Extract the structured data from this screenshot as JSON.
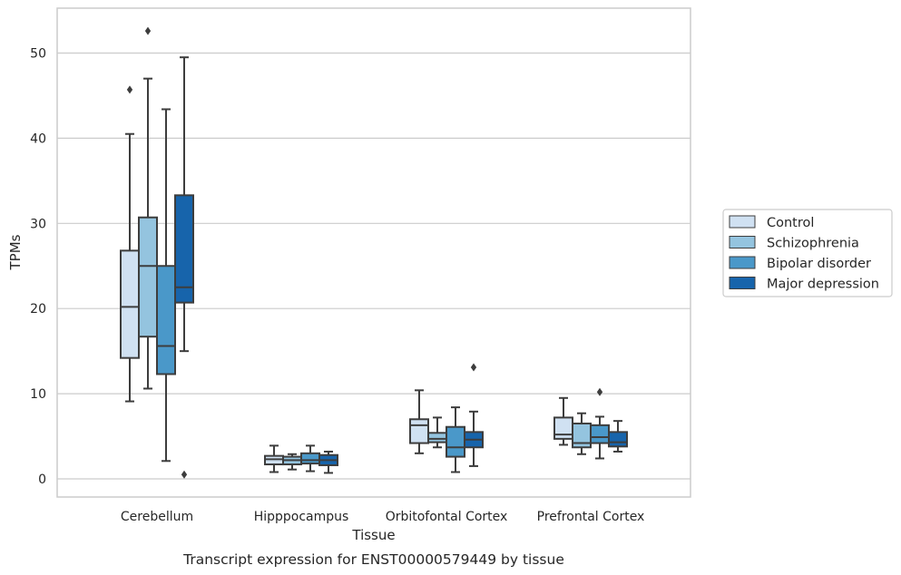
{
  "chart_data": {
    "type": "box",
    "caption": "Transcript expression for ENST00000579449 by tissue",
    "xlabel": "Tissue",
    "ylabel": "TPMs",
    "ylim": [
      -2,
      55
    ],
    "yticks": [
      0,
      10,
      20,
      30,
      40,
      50
    ],
    "grid": "horizontal",
    "legend_position": "right",
    "categories": [
      "Cerebellum",
      "Hipppocampus",
      "Orbitofontal Cortex",
      "Prefrontal Cortex"
    ],
    "series": [
      {
        "name": "Control",
        "color": "#d0e1f2",
        "boxes": [
          {
            "min": 9.1,
            "q1": 14.2,
            "median": 20.2,
            "q3": 26.8,
            "max": 40.5,
            "outliers": [
              45.7
            ]
          },
          {
            "min": 0.8,
            "q1": 1.7,
            "median": 2.3,
            "q3": 2.7,
            "max": 3.9,
            "outliers": []
          },
          {
            "min": 3.0,
            "q1": 4.2,
            "median": 6.3,
            "q3": 7.0,
            "max": 10.4,
            "outliers": []
          },
          {
            "min": 4.0,
            "q1": 4.7,
            "median": 5.2,
            "q3": 7.2,
            "max": 9.5,
            "outliers": []
          }
        ]
      },
      {
        "name": "Schizophrenia",
        "color": "#94c4df",
        "boxes": [
          {
            "min": 10.6,
            "q1": 16.7,
            "median": 25.0,
            "q3": 30.7,
            "max": 47.0,
            "outliers": [
              52.6
            ]
          },
          {
            "min": 1.1,
            "q1": 1.7,
            "median": 2.2,
            "q3": 2.6,
            "max": 2.9,
            "outliers": []
          },
          {
            "min": 3.7,
            "q1": 4.3,
            "median": 4.7,
            "q3": 5.4,
            "max": 7.2,
            "outliers": []
          },
          {
            "min": 2.9,
            "q1": 3.7,
            "median": 4.2,
            "q3": 6.5,
            "max": 7.7,
            "outliers": []
          }
        ]
      },
      {
        "name": "Bipolar disorder",
        "color": "#4a98c9",
        "boxes": [
          {
            "min": 2.1,
            "q1": 12.3,
            "median": 15.6,
            "q3": 25.0,
            "max": 43.4,
            "outliers": []
          },
          {
            "min": 0.9,
            "q1": 1.8,
            "median": 2.2,
            "q3": 3.0,
            "max": 3.9,
            "outliers": []
          },
          {
            "min": 0.8,
            "q1": 2.6,
            "median": 3.7,
            "q3": 6.1,
            "max": 8.4,
            "outliers": []
          },
          {
            "min": 2.4,
            "q1": 4.2,
            "median": 4.9,
            "q3": 6.3,
            "max": 7.3,
            "outliers": [
              10.2
            ]
          }
        ]
      },
      {
        "name": "Major depression",
        "color": "#1764ab",
        "boxes": [
          {
            "min": 15.0,
            "q1": 20.7,
            "median": 22.5,
            "q3": 33.3,
            "max": 49.5,
            "outliers": [
              0.5
            ]
          },
          {
            "min": 0.7,
            "q1": 1.6,
            "median": 2.2,
            "q3": 2.8,
            "max": 3.2,
            "outliers": []
          },
          {
            "min": 1.5,
            "q1": 3.7,
            "median": 4.6,
            "q3": 5.5,
            "max": 7.9,
            "outliers": [
              13.1
            ]
          },
          {
            "min": 3.2,
            "q1": 3.8,
            "median": 4.3,
            "q3": 5.5,
            "max": 6.8,
            "outliers": []
          }
        ]
      }
    ]
  }
}
